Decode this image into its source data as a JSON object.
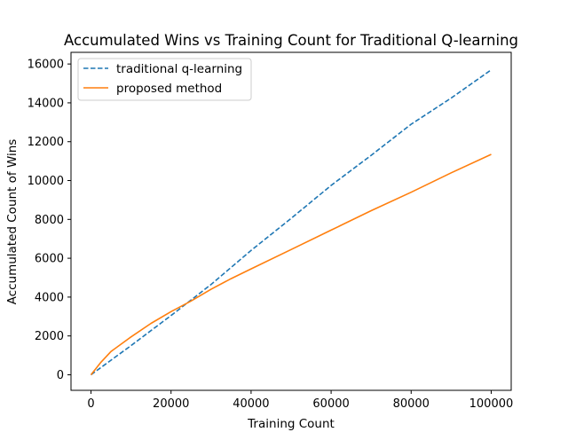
{
  "chart_data": {
    "type": "line",
    "title": "Accumulated Wins vs Training Count for Traditional Q-learning",
    "xlabel": "Training Count",
    "ylabel": "Accumulated Count of Wins",
    "xlim": [
      -5000,
      105000
    ],
    "ylim": [
      -800,
      16600
    ],
    "xticks": [
      0,
      20000,
      40000,
      60000,
      80000,
      100000
    ],
    "xtick_labels": [
      "0",
      "20000",
      "40000",
      "60000",
      "80000",
      "100000"
    ],
    "yticks": [
      0,
      2000,
      4000,
      6000,
      8000,
      10000,
      12000,
      14000,
      16000
    ],
    "ytick_labels": [
      "0",
      "2000",
      "4000",
      "6000",
      "8000",
      "10000",
      "12000",
      "14000",
      "16000"
    ],
    "grid": false,
    "legend_position": "top-left",
    "series": [
      {
        "name": "traditional q-learning",
        "color": "#1f77b4",
        "dash": "dashed",
        "x": [
          0,
          10000,
          20000,
          30000,
          40000,
          50000,
          60000,
          70000,
          80000,
          90000,
          100000
        ],
        "y": [
          0,
          1500,
          3050,
          4650,
          6400,
          8050,
          9750,
          11300,
          12900,
          14250,
          15700
        ]
      },
      {
        "name": "proposed method",
        "color": "#ff7f0e",
        "dash": "solid",
        "x": [
          0,
          2500,
          5000,
          10000,
          15000,
          20000,
          25000,
          30000,
          35000,
          40000,
          50000,
          60000,
          70000,
          80000,
          90000,
          100000
        ],
        "y": [
          0,
          650,
          1200,
          1950,
          2650,
          3250,
          3800,
          4400,
          4950,
          5450,
          6450,
          7450,
          8450,
          9400,
          10400,
          11350
        ]
      }
    ]
  }
}
